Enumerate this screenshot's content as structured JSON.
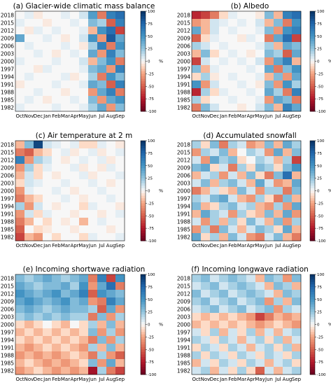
{
  "chart_data": [
    {
      "type": "heatmap",
      "title": "(a) Glacier-wide climatic mass balance",
      "xlabel": "",
      "ylabel": "",
      "x": [
        "Oct",
        "Nov",
        "Dec",
        "Jan",
        "Feb",
        "Mar",
        "Apr",
        "May",
        "Jun",
        "Jul",
        "Aug",
        "Sep"
      ],
      "y": [
        "2018",
        "2015",
        "2012",
        "2009",
        "2006",
        "2003",
        "2000",
        "1997",
        "1994",
        "1991",
        "1988",
        "1985",
        "1982"
      ],
      "colorbar": {
        "ticks": [
          "100",
          "75",
          "50",
          "25",
          "0",
          "-25",
          "-50",
          "-75",
          "-100"
        ],
        "label": "%",
        "vmin": -100,
        "vmax": 100,
        "cmap": "RdBu"
      },
      "values": [
        [
          0,
          5,
          -5,
          0,
          0,
          5,
          0,
          10,
          45,
          -40,
          60,
          70
        ],
        [
          5,
          0,
          0,
          -5,
          0,
          0,
          5,
          0,
          30,
          20,
          -50,
          60
        ],
        [
          0,
          -5,
          5,
          0,
          5,
          0,
          0,
          5,
          -20,
          50,
          70,
          -60
        ],
        [
          40,
          0,
          0,
          5,
          0,
          -5,
          0,
          10,
          50,
          -30,
          80,
          40
        ],
        [
          0,
          5,
          0,
          0,
          0,
          5,
          0,
          -5,
          20,
          60,
          -40,
          50
        ],
        [
          0,
          0,
          5,
          0,
          -5,
          0,
          5,
          0,
          40,
          -30,
          60,
          30
        ],
        [
          5,
          0,
          0,
          0,
          5,
          0,
          0,
          10,
          -20,
          30,
          50,
          -40
        ],
        [
          0,
          0,
          -5,
          5,
          0,
          0,
          0,
          5,
          30,
          40,
          -30,
          60
        ],
        [
          0,
          5,
          0,
          0,
          0,
          5,
          -5,
          0,
          20,
          -40,
          50,
          30
        ],
        [
          -5,
          0,
          0,
          0,
          5,
          0,
          0,
          5,
          40,
          30,
          -50,
          60
        ],
        [
          0,
          0,
          5,
          0,
          0,
          -5,
          0,
          0,
          -30,
          40,
          60,
          -40
        ],
        [
          0,
          5,
          0,
          -5,
          0,
          0,
          5,
          0,
          30,
          -30,
          40,
          50
        ],
        [
          5,
          0,
          0,
          0,
          5,
          0,
          0,
          5,
          20,
          40,
          -30,
          30
        ]
      ]
    },
    {
      "type": "heatmap",
      "title": "(b) Albedo",
      "xlabel": "",
      "ylabel": "",
      "x": [
        "Oct",
        "Nov",
        "Dec",
        "Jan",
        "Feb",
        "Mar",
        "Apr",
        "May",
        "Jun",
        "Jul",
        "Aug",
        "Sep"
      ],
      "y": [
        "2018",
        "2015",
        "2012",
        "2009",
        "2006",
        "2003",
        "2000",
        "1997",
        "1994",
        "1991",
        "1988",
        "1985",
        "1982"
      ],
      "colorbar": {
        "ticks": [
          "100",
          "75",
          "50",
          "25",
          "0",
          "-25",
          "-50",
          "-75",
          "-100"
        ],
        "label": "%",
        "vmin": -100,
        "vmax": 100,
        "cmap": "RdBu"
      },
      "values": [
        [
          -70,
          -60,
          -40,
          -10,
          5,
          0,
          0,
          -5,
          30,
          -20,
          60,
          70
        ],
        [
          -30,
          -20,
          10,
          5,
          0,
          5,
          0,
          10,
          -20,
          30,
          -40,
          50
        ],
        [
          40,
          -20,
          10,
          0,
          5,
          0,
          0,
          5,
          30,
          -30,
          50,
          60
        ],
        [
          -50,
          -10,
          5,
          0,
          0,
          -5,
          5,
          0,
          -40,
          40,
          70,
          -60
        ],
        [
          20,
          10,
          0,
          5,
          0,
          0,
          0,
          5,
          20,
          -20,
          40,
          30
        ],
        [
          -20,
          30,
          -10,
          0,
          5,
          0,
          -5,
          0,
          30,
          20,
          -50,
          40
        ],
        [
          -60,
          10,
          0,
          5,
          0,
          5,
          0,
          10,
          -30,
          40,
          60,
          -20
        ],
        [
          30,
          -20,
          5,
          0,
          0,
          0,
          5,
          0,
          40,
          -40,
          30,
          50
        ],
        [
          -10,
          20,
          -5,
          0,
          5,
          0,
          0,
          5,
          -20,
          30,
          -30,
          40
        ],
        [
          50,
          -30,
          10,
          0,
          0,
          5,
          0,
          -5,
          30,
          -30,
          50,
          20
        ],
        [
          -70,
          20,
          -10,
          5,
          0,
          0,
          5,
          0,
          40,
          20,
          -40,
          60
        ],
        [
          20,
          -10,
          0,
          0,
          5,
          0,
          0,
          5,
          -30,
          40,
          30,
          -40
        ],
        [
          -40,
          30,
          10,
          0,
          0,
          -5,
          0,
          10,
          30,
          -20,
          60,
          40
        ]
      ]
    },
    {
      "type": "heatmap",
      "title": "(c) Air temperature at 2 m",
      "xlabel": "",
      "ylabel": "",
      "x": [
        "Oct",
        "Nov",
        "Dec",
        "Jan",
        "Feb",
        "Mar",
        "Apr",
        "May",
        "Jun",
        "Jul",
        "Aug",
        "Sep"
      ],
      "y": [
        "2018",
        "2015",
        "2012",
        "2009",
        "2006",
        "2003",
        "2000",
        "1997",
        "1994",
        "1991",
        "1988",
        "1985",
        "1982"
      ],
      "colorbar": {
        "ticks": [
          "100",
          "75",
          "50",
          "25",
          "0",
          "-25",
          "-50",
          "-75",
          "-100"
        ],
        "label": "%",
        "vmin": -100,
        "vmax": 100,
        "cmap": "RdBu"
      },
      "values": [
        [
          -20,
          30,
          90,
          10,
          5,
          0,
          5,
          -10,
          -10,
          5,
          0,
          -5
        ],
        [
          -40,
          -50,
          -20,
          -10,
          0,
          5,
          -5,
          0,
          5,
          -5,
          0,
          5
        ],
        [
          60,
          -30,
          20,
          10,
          0,
          -5,
          0,
          5,
          0,
          5,
          -5,
          0
        ],
        [
          -30,
          20,
          -10,
          5,
          0,
          0,
          5,
          -5,
          0,
          -5,
          5,
          0
        ],
        [
          -20,
          10,
          -10,
          0,
          -5,
          0,
          0,
          5,
          -5,
          0,
          0,
          5
        ],
        [
          -10,
          10,
          5,
          0,
          0,
          5,
          0,
          0,
          5,
          0,
          -5,
          0
        ],
        [
          -30,
          5,
          0,
          0,
          5,
          0,
          -5,
          0,
          0,
          5,
          0,
          0
        ],
        [
          -40,
          -20,
          -10,
          0,
          0,
          5,
          0,
          -5,
          0,
          0,
          5,
          0
        ],
        [
          20,
          -30,
          10,
          0,
          -5,
          0,
          0,
          -10,
          5,
          0,
          0,
          -5
        ],
        [
          -30,
          10,
          -10,
          5,
          0,
          0,
          -5,
          0,
          0,
          -5,
          0,
          5
        ],
        [
          -40,
          -20,
          0,
          -10,
          0,
          -5,
          0,
          -20,
          0,
          5,
          0,
          0
        ],
        [
          -50,
          0,
          -10,
          -5,
          0,
          0,
          -5,
          0,
          0,
          0,
          -5,
          0
        ],
        [
          -60,
          -20,
          -30,
          0,
          -10,
          0,
          0,
          -10,
          5,
          0,
          0,
          5
        ]
      ]
    },
    {
      "type": "heatmap",
      "title": "(d) Accumulated snowfall",
      "xlabel": "",
      "ylabel": "",
      "x": [
        "Oct",
        "Nov",
        "Dec",
        "Jan",
        "Feb",
        "Mar",
        "Apr",
        "May",
        "Jun",
        "Jul",
        "Aug",
        "Sep"
      ],
      "y": [
        "2018",
        "2015",
        "2012",
        "2009",
        "2006",
        "2003",
        "2000",
        "1997",
        "1994",
        "1991",
        "1988",
        "1985",
        "1982"
      ],
      "colorbar": {
        "ticks": [
          "100",
          "75",
          "50",
          "25",
          "0",
          "-25",
          "-50",
          "-75",
          "-100"
        ],
        "label": "%",
        "vmin": -100,
        "vmax": 100,
        "cmap": "RdBu"
      },
      "values": [
        [
          20,
          -10,
          30,
          -40,
          20,
          10,
          -30,
          -20,
          30,
          -20,
          40,
          20
        ],
        [
          -30,
          20,
          10,
          30,
          -20,
          0,
          20,
          10,
          -30,
          40,
          -20,
          30
        ],
        [
          10,
          -30,
          40,
          20,
          30,
          -10,
          0,
          20,
          10,
          -20,
          20,
          -60
        ],
        [
          30,
          40,
          -10,
          10,
          -40,
          20,
          -10,
          30,
          20,
          -10,
          30,
          50
        ],
        [
          -20,
          10,
          20,
          -30,
          10,
          -20,
          30,
          -10,
          -40,
          30,
          70,
          -20
        ],
        [
          10,
          30,
          -20,
          20,
          30,
          10,
          -20,
          40,
          10,
          -30,
          -20,
          40
        ],
        [
          -40,
          -20,
          10,
          -10,
          -20,
          30,
          10,
          -30,
          20,
          20,
          -40,
          30
        ],
        [
          20,
          10,
          30,
          40,
          10,
          -20,
          -30,
          20,
          -10,
          -40,
          30,
          -20
        ],
        [
          30,
          -20,
          -10,
          20,
          30,
          10,
          20,
          -20,
          -30,
          20,
          -30,
          40
        ],
        [
          -20,
          40,
          20,
          10,
          -30,
          20,
          -10,
          -20,
          30,
          -20,
          40,
          -30
        ],
        [
          10,
          -30,
          20,
          -20,
          20,
          -10,
          30,
          10,
          -20,
          30,
          -30,
          20
        ],
        [
          -30,
          20,
          -40,
          30,
          10,
          -20,
          10,
          30,
          20,
          -10,
          40,
          -20
        ],
        [
          40,
          -10,
          20,
          -20,
          30,
          10,
          -30,
          -40,
          10,
          30,
          -20,
          -40
        ]
      ]
    },
    {
      "type": "heatmap",
      "title": "(e) Incoming shortwave radiation",
      "xlabel": "",
      "ylabel": "",
      "x": [
        "Oct",
        "Nov",
        "Dec",
        "Jan",
        "Feb",
        "Mar",
        "Apr",
        "May",
        "Jun",
        "Jul",
        "Aug",
        "Sep"
      ],
      "y": [
        "2018",
        "2015",
        "2012",
        "2009",
        "2006",
        "2003",
        "2000",
        "1997",
        "1994",
        "1991",
        "1988",
        "1985",
        "1982"
      ],
      "colorbar": {
        "ticks": [
          "100",
          "75",
          "50",
          "25",
          "0",
          "-25",
          "-50",
          "-75",
          "-100"
        ],
        "label": "%",
        "vmin": -100,
        "vmax": 100,
        "cmap": "RdBu"
      },
      "values": [
        [
          30,
          20,
          30,
          40,
          30,
          20,
          30,
          40,
          -40,
          60,
          -60,
          50
        ],
        [
          40,
          30,
          20,
          30,
          30,
          40,
          20,
          50,
          -30,
          40,
          70,
          -40
        ],
        [
          50,
          40,
          30,
          40,
          50,
          30,
          40,
          60,
          -50,
          50,
          40,
          30
        ],
        [
          40,
          50,
          40,
          30,
          40,
          50,
          30,
          40,
          -30,
          -40,
          60,
          40
        ],
        [
          30,
          40,
          30,
          20,
          30,
          40,
          30,
          30,
          20,
          -50,
          40,
          -30
        ],
        [
          20,
          30,
          20,
          30,
          20,
          30,
          20,
          20,
          -40,
          30,
          -30,
          20
        ],
        [
          -10,
          -20,
          -10,
          0,
          -10,
          -20,
          0,
          -10,
          20,
          -20,
          30,
          -20
        ],
        [
          -20,
          -10,
          -20,
          -10,
          -20,
          -10,
          -20,
          -10,
          30,
          -30,
          20,
          -30
        ],
        [
          -10,
          -20,
          -10,
          -20,
          -10,
          -20,
          -10,
          -20,
          -40,
          30,
          -30,
          20
        ],
        [
          -20,
          -30,
          -20,
          -10,
          -20,
          -10,
          -20,
          -30,
          20,
          -20,
          30,
          -20
        ],
        [
          -30,
          -20,
          -30,
          -20,
          -30,
          -20,
          -10,
          -20,
          -40,
          20,
          -30,
          -50
        ],
        [
          -20,
          -10,
          -20,
          -30,
          -20,
          -30,
          -20,
          -10,
          30,
          -30,
          40,
          -20
        ],
        [
          -30,
          -20,
          -10,
          -20,
          -30,
          -20,
          -30,
          -20,
          -80,
          20,
          -40,
          -60
        ]
      ]
    },
    {
      "type": "heatmap",
      "title": "(f) Incoming longwave radiation",
      "xlabel": "",
      "ylabel": "",
      "x": [
        "Oct",
        "Nov",
        "Dec",
        "Jan",
        "Feb",
        "Mar",
        "Apr",
        "May",
        "Jun",
        "Jul",
        "Aug",
        "Sep"
      ],
      "y": [
        "2018",
        "2015",
        "2012",
        "2009",
        "2006",
        "2003",
        "2000",
        "1997",
        "1994",
        "1991",
        "1988",
        "1985",
        "1982"
      ],
      "colorbar": {
        "ticks": [
          "100",
          "75",
          "50",
          "25",
          "0",
          "-25",
          "-50",
          "-75",
          "-100"
        ],
        "label": "%",
        "vmin": -100,
        "vmax": 100,
        "cmap": "RdBu"
      },
      "values": [
        [
          20,
          30,
          10,
          20,
          30,
          20,
          10,
          -20,
          30,
          20,
          -30,
          30
        ],
        [
          10,
          20,
          30,
          10,
          20,
          30,
          20,
          10,
          -20,
          30,
          20,
          -20
        ],
        [
          30,
          10,
          20,
          30,
          10,
          20,
          30,
          20,
          10,
          -20,
          30,
          20
        ],
        [
          20,
          30,
          10,
          20,
          30,
          10,
          20,
          30,
          -30,
          20,
          -20,
          30
        ],
        [
          10,
          20,
          30,
          10,
          20,
          30,
          10,
          20,
          30,
          -30,
          20,
          10
        ],
        [
          -10,
          -20,
          -10,
          -20,
          -10,
          -20,
          -30,
          -60,
          -40,
          -20,
          -30,
          -20
        ],
        [
          -20,
          -10,
          -20,
          -10,
          -20,
          -10,
          -20,
          -30,
          -20,
          -10,
          -20,
          -30
        ],
        [
          10,
          -10,
          20,
          -20,
          10,
          -10,
          20,
          -20,
          10,
          -20,
          10,
          20
        ],
        [
          20,
          10,
          -10,
          20,
          10,
          -20,
          10,
          20,
          -10,
          20,
          -20,
          10
        ],
        [
          -10,
          20,
          10,
          -10,
          20,
          10,
          -20,
          10,
          20,
          -10,
          20,
          -20
        ],
        [
          20,
          -10,
          20,
          10,
          -10,
          20,
          10,
          -10,
          20,
          10,
          -10,
          20
        ],
        [
          -20,
          10,
          -10,
          20,
          10,
          -10,
          20,
          10,
          -20,
          10,
          20,
          -10
        ],
        [
          10,
          20,
          -20,
          10,
          -10,
          20,
          -10,
          -50,
          10,
          -20,
          10,
          20
        ]
      ]
    }
  ]
}
